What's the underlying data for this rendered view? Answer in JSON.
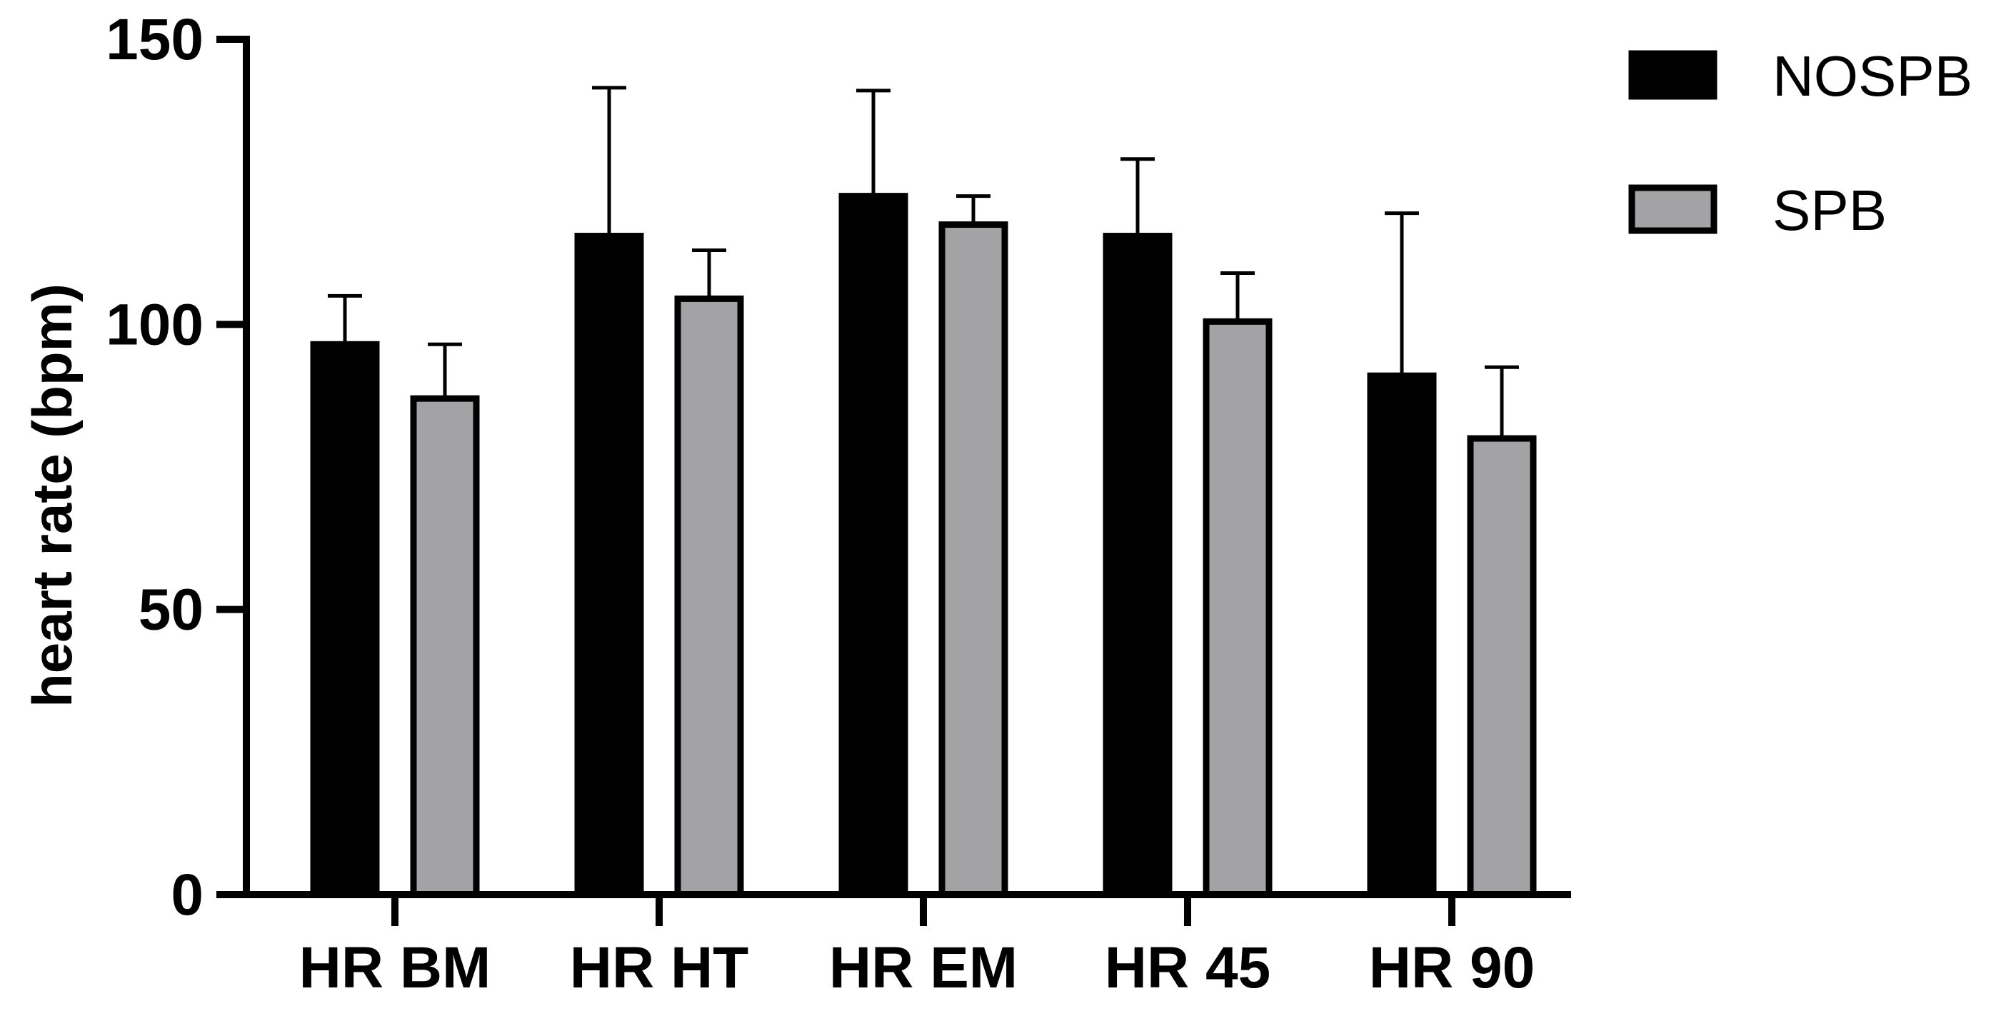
{
  "chart_data": {
    "type": "bar",
    "title": "",
    "xlabel": "",
    "ylabel": "heart rate (bpm)",
    "ylim": [
      0,
      150
    ],
    "yticks": [
      "0",
      "50",
      "100",
      "150"
    ],
    "grid": false,
    "legend_position": "top-right",
    "categories": [
      "HR BM",
      "HR HT",
      "HR EM",
      "HR 45",
      "HR 90"
    ],
    "series": [
      {
        "name": "NOSPB",
        "color": "#000000",
        "values": [
          96.5,
          115.5,
          122.5,
          115.5,
          91
        ],
        "error": [
          8.5,
          26,
          18.5,
          13.5,
          28.5
        ]
      },
      {
        "name": "SPB",
        "color": "#a3a3a6",
        "values": [
          87,
          104.5,
          117.5,
          100.5,
          80
        ],
        "error": [
          9.5,
          8.5,
          5,
          8.5,
          12.5
        ]
      }
    ]
  }
}
